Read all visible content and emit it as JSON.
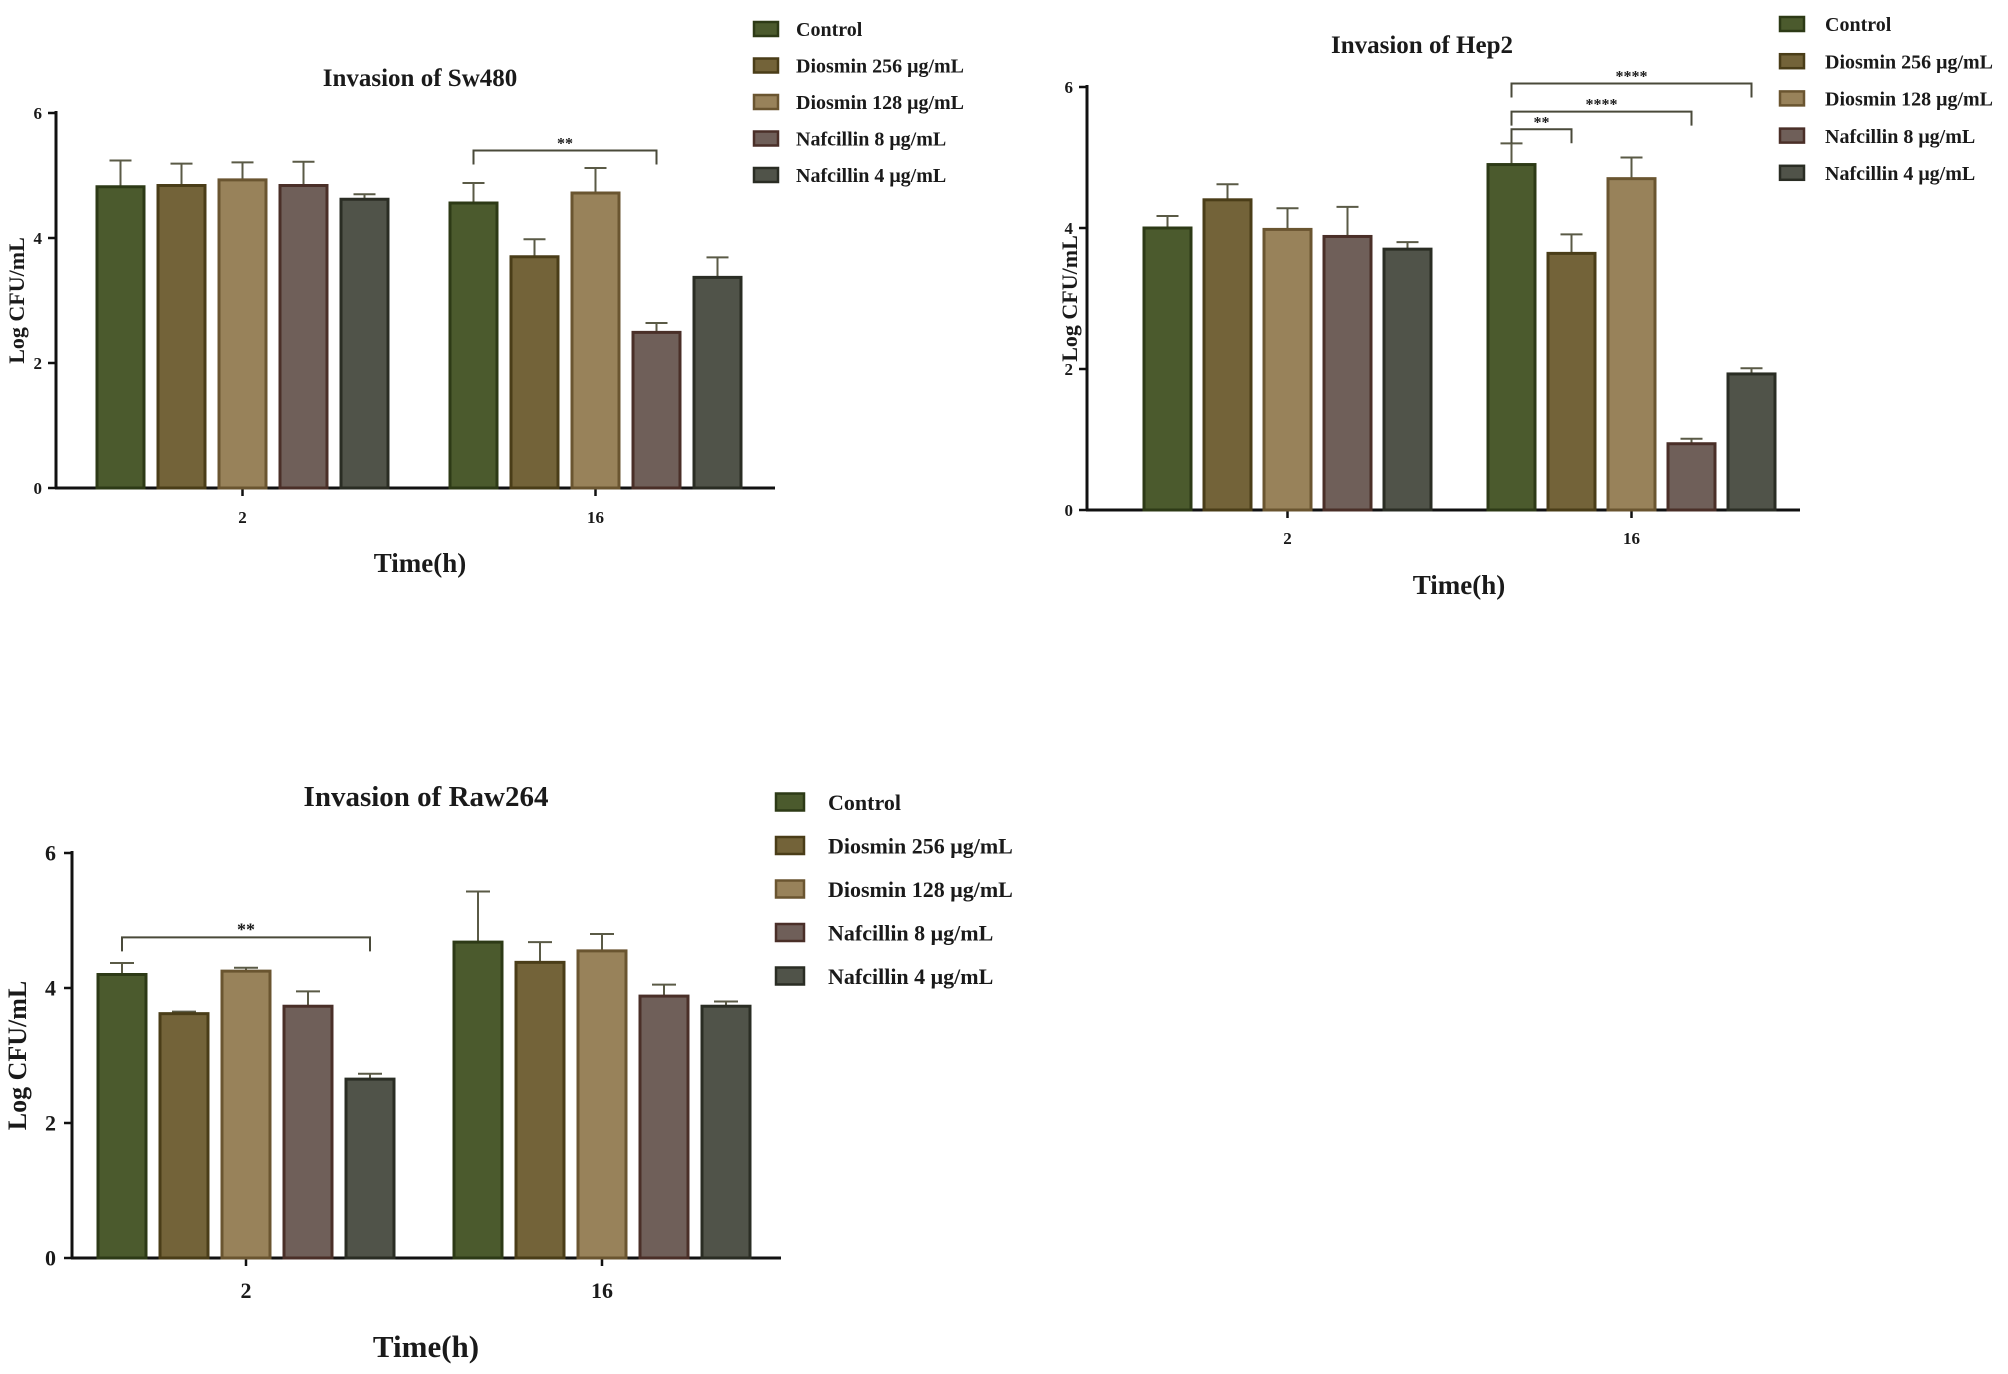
{
  "palette": {
    "axis": "#111111",
    "error": "#5a5a46",
    "bracket": "#4a4a3a",
    "series_fill": [
      "#4b5a2d",
      "#736339",
      "#98825a",
      "#6f5f59",
      "#505349"
    ],
    "series_stroke": [
      "#2d3a16",
      "#4a3d18",
      "#6a5530",
      "#4a2f28",
      "#2a2d24"
    ]
  },
  "chart_data": [
    {
      "type": "bar",
      "title": "Invasion of Sw480",
      "xlabel": "Time(h)",
      "ylabel": "Log CFU/mL",
      "ylim": [
        0,
        6
      ],
      "yticks": [
        "0",
        "2",
        "4",
        "6"
      ],
      "categories": [
        "2",
        "16"
      ],
      "legend_position": "right",
      "series": [
        {
          "name": "Control",
          "values": [
            4.82,
            4.56
          ],
          "errors": [
            0.42,
            0.32
          ]
        },
        {
          "name": "Diosmin 256 μg/mL",
          "values": [
            4.84,
            3.7
          ],
          "errors": [
            0.35,
            0.28
          ]
        },
        {
          "name": "Diosmin 128 μg/mL",
          "values": [
            4.93,
            4.72
          ],
          "errors": [
            0.28,
            0.4
          ]
        },
        {
          "name": "Nafcillin 8 μg/mL",
          "values": [
            4.84,
            2.49
          ],
          "errors": [
            0.38,
            0.15
          ]
        },
        {
          "name": "Nafcillin 4 μg/mL",
          "values": [
            4.62,
            3.37
          ],
          "errors": [
            0.08,
            0.32
          ]
        }
      ],
      "significance": [
        {
          "category": "16",
          "from_series": 0,
          "to_series": 3,
          "label": "**",
          "level": 5.4
        }
      ]
    },
    {
      "type": "bar",
      "title": "Invasion of Hep2",
      "xlabel": "Time(h)",
      "ylabel": "Log CFU/mL",
      "ylim": [
        0,
        6
      ],
      "yticks": [
        "0",
        "2",
        "4",
        "6"
      ],
      "categories": [
        "2",
        "16"
      ],
      "legend_position": "right",
      "series": [
        {
          "name": "Control",
          "values": [
            4.0,
            4.9
          ],
          "errors": [
            0.17,
            0.3
          ]
        },
        {
          "name": "Diosmin 256 μg/mL",
          "values": [
            4.4,
            3.64
          ],
          "errors": [
            0.22,
            0.27
          ]
        },
        {
          "name": "Diosmin 128 μg/mL",
          "values": [
            3.98,
            4.7
          ],
          "errors": [
            0.3,
            0.3
          ]
        },
        {
          "name": "Nafcillin 8 μg/mL",
          "values": [
            3.88,
            0.94
          ],
          "errors": [
            0.42,
            0.07
          ]
        },
        {
          "name": "Nafcillin 4 μg/mL",
          "values": [
            3.7,
            1.93
          ],
          "errors": [
            0.1,
            0.08
          ]
        }
      ],
      "significance": [
        {
          "category": "16",
          "from_series": 0,
          "to_series": 1,
          "label": "**",
          "level": 5.4
        },
        {
          "category": "16",
          "from_series": 0,
          "to_series": 3,
          "label": "****",
          "level": 5.65
        },
        {
          "category": "16",
          "from_series": 0,
          "to_series": 4,
          "label": "****",
          "level": 6.05
        }
      ]
    },
    {
      "type": "bar",
      "title": "Invasion of Raw264",
      "xlabel": "Time(h)",
      "ylabel": "Log CFU/mL",
      "ylim": [
        0,
        6
      ],
      "yticks": [
        "0",
        "2",
        "4",
        "6"
      ],
      "categories": [
        "2",
        "16"
      ],
      "legend_position": "right",
      "series": [
        {
          "name": "Control",
          "values": [
            4.2,
            4.68
          ],
          "errors": [
            0.17,
            0.75
          ]
        },
        {
          "name": "Diosmin 256 μg/mL",
          "values": [
            3.62,
            4.38
          ],
          "errors": [
            0.03,
            0.3
          ]
        },
        {
          "name": "Diosmin 128 μg/mL",
          "values": [
            4.25,
            4.55
          ],
          "errors": [
            0.05,
            0.25
          ]
        },
        {
          "name": "Nafcillin 8 μg/mL",
          "values": [
            3.73,
            3.88
          ],
          "errors": [
            0.22,
            0.17
          ]
        },
        {
          "name": "Nafcillin 4 μg/mL",
          "values": [
            2.65,
            3.73
          ],
          "errors": [
            0.08,
            0.07
          ]
        }
      ],
      "significance": [
        {
          "category": "2",
          "from_series": 0,
          "to_series": 4,
          "label": "**",
          "level": 4.75
        }
      ]
    }
  ]
}
